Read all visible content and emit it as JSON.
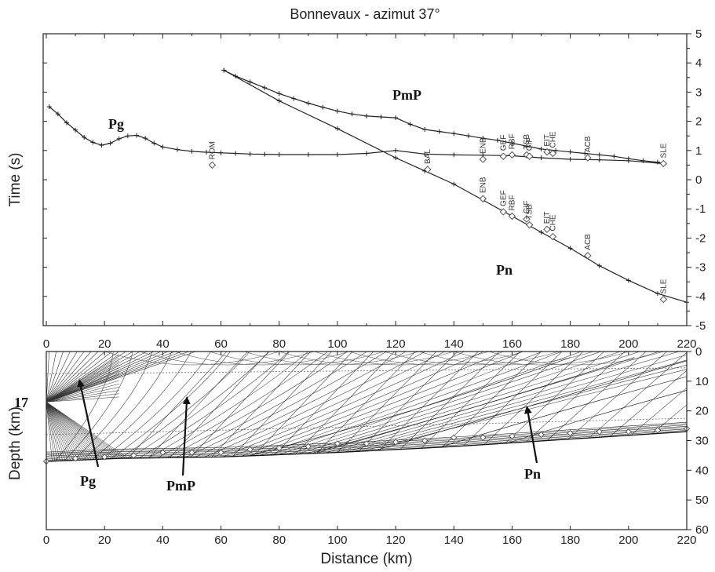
{
  "chart_data": [
    {
      "type": "line",
      "title": "Bonnevaux - azimut 37°",
      "ylabel": "Time (s)",
      "xlim": [
        0,
        220
      ],
      "ylim": [
        -5,
        5
      ],
      "x_ticks": [
        "0",
        "20",
        "40",
        "60",
        "80",
        "100",
        "120",
        "140",
        "160",
        "180",
        "200",
        "220"
      ],
      "y_ticks": [
        "5",
        "4",
        "3",
        "2",
        "1",
        "0",
        "-1",
        "-2",
        "-3",
        "-4",
        "-5"
      ],
      "grid": false,
      "series": [
        {
          "name": "Pg",
          "x": [
            1,
            4,
            7,
            10,
            13,
            16,
            19,
            22,
            25,
            28,
            31,
            34,
            37,
            40,
            45,
            50,
            55,
            60,
            65,
            70,
            75,
            80,
            90,
            100,
            110,
            120,
            130,
            140,
            150,
            160,
            170,
            180,
            190,
            200,
            212
          ],
          "y": [
            2.5,
            2.25,
            1.95,
            1.7,
            1.45,
            1.28,
            1.18,
            1.25,
            1.4,
            1.5,
            1.52,
            1.42,
            1.25,
            1.12,
            1.03,
            0.97,
            0.94,
            0.92,
            0.9,
            0.88,
            0.87,
            0.86,
            0.86,
            0.86,
            0.9,
            1.0,
            0.88,
            0.85,
            0.84,
            0.82,
            0.75,
            0.7,
            0.68,
            0.65,
            0.55
          ]
        },
        {
          "name": "PmP",
          "x": [
            61,
            65,
            70,
            75,
            80,
            85,
            90,
            95,
            100,
            105,
            110,
            115,
            120,
            125,
            130,
            135,
            140,
            145,
            150,
            155,
            160,
            165,
            170,
            175,
            180,
            185,
            190,
            195,
            200,
            205,
            210,
            212
          ],
          "y": [
            3.75,
            3.55,
            3.35,
            3.15,
            2.95,
            2.78,
            2.62,
            2.48,
            2.35,
            2.25,
            2.18,
            2.15,
            2.12,
            1.9,
            1.72,
            1.65,
            1.58,
            1.5,
            1.42,
            1.35,
            1.25,
            1.15,
            1.05,
            1.0,
            0.95,
            0.9,
            0.85,
            0.8,
            0.72,
            0.65,
            0.6,
            0.55
          ]
        },
        {
          "name": "Pn",
          "x": [
            61,
            80,
            100,
            120,
            130,
            140,
            150,
            160,
            170,
            180,
            190,
            200,
            210,
            220
          ],
          "y": [
            3.75,
            2.7,
            1.75,
            0.75,
            0.3,
            -0.15,
            -0.7,
            -1.25,
            -1.8,
            -2.35,
            -2.95,
            -3.45,
            -3.9,
            -4.2
          ]
        }
      ],
      "phase_labels": [
        "Pg",
        "PmP",
        "Pn"
      ],
      "stations": [
        {
          "name": "ROM",
          "x": 57,
          "y": 0.5
        },
        {
          "name": "BAL",
          "x": 131,
          "y": 0.35
        },
        {
          "name": "ENB",
          "x": 150,
          "y": 0.7
        },
        {
          "name": "GEF",
          "x": 157,
          "y": 0.8
        },
        {
          "name": "RBF",
          "x": 160,
          "y": 0.85
        },
        {
          "name": "TSB",
          "x": 165,
          "y": 0.85
        },
        {
          "name": "GIF",
          "x": 166,
          "y": 0.8
        },
        {
          "name": "EIT",
          "x": 172,
          "y": 0.95
        },
        {
          "name": "CHE",
          "x": 174,
          "y": 0.9
        },
        {
          "name": "ACB",
          "x": 186,
          "y": 0.75
        },
        {
          "name": "SLE",
          "x": 212,
          "y": 0.55
        },
        {
          "name": "ENB",
          "x": 150,
          "y": -0.65
        },
        {
          "name": "GEF",
          "x": 157,
          "y": -1.1
        },
        {
          "name": "RBF",
          "x": 160,
          "y": -1.25
        },
        {
          "name": "GIF",
          "x": 165,
          "y": -1.35
        },
        {
          "name": "TSB",
          "x": 166,
          "y": -1.55
        },
        {
          "name": "EIT",
          "x": 172,
          "y": -1.7
        },
        {
          "name": "CHE",
          "x": 174,
          "y": -1.95
        },
        {
          "name": "ACB",
          "x": 186,
          "y": -2.6
        },
        {
          "name": "SLE",
          "x": 212,
          "y": -4.1
        }
      ]
    },
    {
      "type": "line",
      "xlabel": "Distance (km)",
      "ylabel": "Depth (km)",
      "xlim": [
        0,
        220
      ],
      "ylim": [
        0,
        60
      ],
      "x_ticks": [
        "0",
        "20",
        "40",
        "60",
        "80",
        "100",
        "120",
        "140",
        "160",
        "180",
        "200",
        "220"
      ],
      "y_ticks": [
        "0",
        "10",
        "20",
        "30",
        "40",
        "50",
        "60"
      ],
      "source_depth_label": "17",
      "source": {
        "x": 0,
        "depth": 17
      },
      "moho": {
        "x": [
          0,
          25,
          60,
          100,
          140,
          180,
          220
        ],
        "depth": [
          37,
          36,
          35.5,
          34,
          32,
          29.5,
          27
        ]
      },
      "interfaces": [
        {
          "x": [
            0,
            220
          ],
          "depth": [
            7.5,
            5.5
          ]
        },
        {
          "x": [
            0,
            220
          ],
          "depth": [
            28,
            22.5
          ]
        }
      ],
      "moho_markers": [
        {
          "x": 0,
          "depth": 37
        },
        {
          "x": 10,
          "depth": 36
        },
        {
          "x": 20,
          "depth": 35.5
        },
        {
          "x": 30,
          "depth": 35
        },
        {
          "x": 40,
          "depth": 34
        },
        {
          "x": 50,
          "depth": 34
        },
        {
          "x": 60,
          "depth": 34
        },
        {
          "x": 70,
          "depth": 33
        },
        {
          "x": 80,
          "depth": 32.5
        },
        {
          "x": 90,
          "depth": 32
        },
        {
          "x": 100,
          "depth": 31
        },
        {
          "x": 110,
          "depth": 31
        },
        {
          "x": 120,
          "depth": 30.5
        },
        {
          "x": 130,
          "depth": 30
        },
        {
          "x": 140,
          "depth": 29
        },
        {
          "x": 150,
          "depth": 29
        },
        {
          "x": 160,
          "depth": 28.5
        },
        {
          "x": 170,
          "depth": 28
        },
        {
          "x": 180,
          "depth": 27.5
        },
        {
          "x": 190,
          "depth": 27
        },
        {
          "x": 200,
          "depth": 27
        },
        {
          "x": 210,
          "depth": 26.5
        },
        {
          "x": 220,
          "depth": 26
        }
      ],
      "phase_labels": [
        "Pg",
        "PmP",
        "Pn"
      ]
    }
  ]
}
